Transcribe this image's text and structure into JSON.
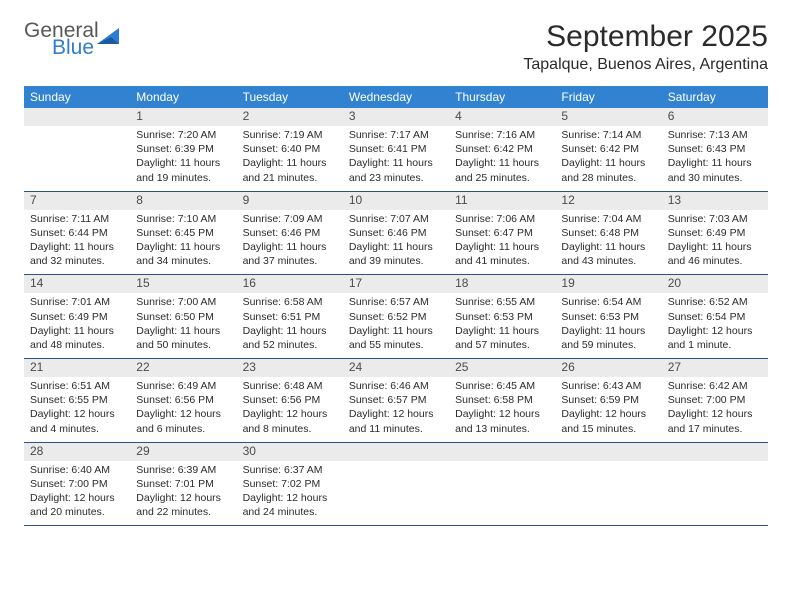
{
  "logo": {
    "general": "General",
    "blue": "Blue"
  },
  "title": "September 2025",
  "location": "Tapalque, Buenos Aires, Argentina",
  "header_bg": "#3182d1",
  "header_text_color": "#ffffff",
  "day_number_bg": "#ebebeb",
  "cell_border_color": "#2b5486",
  "days_of_week": [
    "Sunday",
    "Monday",
    "Tuesday",
    "Wednesday",
    "Thursday",
    "Friday",
    "Saturday"
  ],
  "weeks": [
    [
      {
        "num": "",
        "sunrise": "",
        "sunset": "",
        "daylight": ""
      },
      {
        "num": "1",
        "sunrise": "Sunrise: 7:20 AM",
        "sunset": "Sunset: 6:39 PM",
        "daylight": "Daylight: 11 hours and 19 minutes."
      },
      {
        "num": "2",
        "sunrise": "Sunrise: 7:19 AM",
        "sunset": "Sunset: 6:40 PM",
        "daylight": "Daylight: 11 hours and 21 minutes."
      },
      {
        "num": "3",
        "sunrise": "Sunrise: 7:17 AM",
        "sunset": "Sunset: 6:41 PM",
        "daylight": "Daylight: 11 hours and 23 minutes."
      },
      {
        "num": "4",
        "sunrise": "Sunrise: 7:16 AM",
        "sunset": "Sunset: 6:42 PM",
        "daylight": "Daylight: 11 hours and 25 minutes."
      },
      {
        "num": "5",
        "sunrise": "Sunrise: 7:14 AM",
        "sunset": "Sunset: 6:42 PM",
        "daylight": "Daylight: 11 hours and 28 minutes."
      },
      {
        "num": "6",
        "sunrise": "Sunrise: 7:13 AM",
        "sunset": "Sunset: 6:43 PM",
        "daylight": "Daylight: 11 hours and 30 minutes."
      }
    ],
    [
      {
        "num": "7",
        "sunrise": "Sunrise: 7:11 AM",
        "sunset": "Sunset: 6:44 PM",
        "daylight": "Daylight: 11 hours and 32 minutes."
      },
      {
        "num": "8",
        "sunrise": "Sunrise: 7:10 AM",
        "sunset": "Sunset: 6:45 PM",
        "daylight": "Daylight: 11 hours and 34 minutes."
      },
      {
        "num": "9",
        "sunrise": "Sunrise: 7:09 AM",
        "sunset": "Sunset: 6:46 PM",
        "daylight": "Daylight: 11 hours and 37 minutes."
      },
      {
        "num": "10",
        "sunrise": "Sunrise: 7:07 AM",
        "sunset": "Sunset: 6:46 PM",
        "daylight": "Daylight: 11 hours and 39 minutes."
      },
      {
        "num": "11",
        "sunrise": "Sunrise: 7:06 AM",
        "sunset": "Sunset: 6:47 PM",
        "daylight": "Daylight: 11 hours and 41 minutes."
      },
      {
        "num": "12",
        "sunrise": "Sunrise: 7:04 AM",
        "sunset": "Sunset: 6:48 PM",
        "daylight": "Daylight: 11 hours and 43 minutes."
      },
      {
        "num": "13",
        "sunrise": "Sunrise: 7:03 AM",
        "sunset": "Sunset: 6:49 PM",
        "daylight": "Daylight: 11 hours and 46 minutes."
      }
    ],
    [
      {
        "num": "14",
        "sunrise": "Sunrise: 7:01 AM",
        "sunset": "Sunset: 6:49 PM",
        "daylight": "Daylight: 11 hours and 48 minutes."
      },
      {
        "num": "15",
        "sunrise": "Sunrise: 7:00 AM",
        "sunset": "Sunset: 6:50 PM",
        "daylight": "Daylight: 11 hours and 50 minutes."
      },
      {
        "num": "16",
        "sunrise": "Sunrise: 6:58 AM",
        "sunset": "Sunset: 6:51 PM",
        "daylight": "Daylight: 11 hours and 52 minutes."
      },
      {
        "num": "17",
        "sunrise": "Sunrise: 6:57 AM",
        "sunset": "Sunset: 6:52 PM",
        "daylight": "Daylight: 11 hours and 55 minutes."
      },
      {
        "num": "18",
        "sunrise": "Sunrise: 6:55 AM",
        "sunset": "Sunset: 6:53 PM",
        "daylight": "Daylight: 11 hours and 57 minutes."
      },
      {
        "num": "19",
        "sunrise": "Sunrise: 6:54 AM",
        "sunset": "Sunset: 6:53 PM",
        "daylight": "Daylight: 11 hours and 59 minutes."
      },
      {
        "num": "20",
        "sunrise": "Sunrise: 6:52 AM",
        "sunset": "Sunset: 6:54 PM",
        "daylight": "Daylight: 12 hours and 1 minute."
      }
    ],
    [
      {
        "num": "21",
        "sunrise": "Sunrise: 6:51 AM",
        "sunset": "Sunset: 6:55 PM",
        "daylight": "Daylight: 12 hours and 4 minutes."
      },
      {
        "num": "22",
        "sunrise": "Sunrise: 6:49 AM",
        "sunset": "Sunset: 6:56 PM",
        "daylight": "Daylight: 12 hours and 6 minutes."
      },
      {
        "num": "23",
        "sunrise": "Sunrise: 6:48 AM",
        "sunset": "Sunset: 6:56 PM",
        "daylight": "Daylight: 12 hours and 8 minutes."
      },
      {
        "num": "24",
        "sunrise": "Sunrise: 6:46 AM",
        "sunset": "Sunset: 6:57 PM",
        "daylight": "Daylight: 12 hours and 11 minutes."
      },
      {
        "num": "25",
        "sunrise": "Sunrise: 6:45 AM",
        "sunset": "Sunset: 6:58 PM",
        "daylight": "Daylight: 12 hours and 13 minutes."
      },
      {
        "num": "26",
        "sunrise": "Sunrise: 6:43 AM",
        "sunset": "Sunset: 6:59 PM",
        "daylight": "Daylight: 12 hours and 15 minutes."
      },
      {
        "num": "27",
        "sunrise": "Sunrise: 6:42 AM",
        "sunset": "Sunset: 7:00 PM",
        "daylight": "Daylight: 12 hours and 17 minutes."
      }
    ],
    [
      {
        "num": "28",
        "sunrise": "Sunrise: 6:40 AM",
        "sunset": "Sunset: 7:00 PM",
        "daylight": "Daylight: 12 hours and 20 minutes."
      },
      {
        "num": "29",
        "sunrise": "Sunrise: 6:39 AM",
        "sunset": "Sunset: 7:01 PM",
        "daylight": "Daylight: 12 hours and 22 minutes."
      },
      {
        "num": "30",
        "sunrise": "Sunrise: 6:37 AM",
        "sunset": "Sunset: 7:02 PM",
        "daylight": "Daylight: 12 hours and 24 minutes."
      },
      {
        "num": "",
        "sunrise": "",
        "sunset": "",
        "daylight": ""
      },
      {
        "num": "",
        "sunrise": "",
        "sunset": "",
        "daylight": ""
      },
      {
        "num": "",
        "sunrise": "",
        "sunset": "",
        "daylight": ""
      },
      {
        "num": "",
        "sunrise": "",
        "sunset": "",
        "daylight": ""
      }
    ]
  ]
}
